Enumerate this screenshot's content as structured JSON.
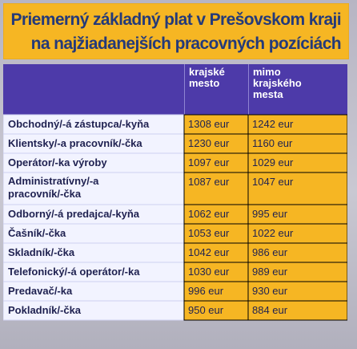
{
  "title": {
    "line1": "Priemerný základný plat v Prešovskom kraji",
    "line2": "na najžiadanejších pracovných pozíciách"
  },
  "colors": {
    "title_bg": "#f6b623",
    "title_text": "#243a7a",
    "header_bg": "#4d3aa9",
    "label_bg": "#f2f3ff",
    "value_bg": "#f6b623",
    "row_separator": "#cfd0f0",
    "body_text": "#1f2150"
  },
  "chart_data": {
    "type": "table",
    "columns": [
      "krajské mesto",
      "mimo krajského mesta"
    ],
    "column_header_lines": [
      [
        "krajské",
        "mesto"
      ],
      [
        "mimo",
        "krajského",
        "mesta"
      ]
    ],
    "rows": [
      {
        "label_lines": [
          "Obchodný/-á zástupca/-kyňa"
        ],
        "values": [
          "1308 eur",
          "1242 eur"
        ]
      },
      {
        "label_lines": [
          "Klientsky/-a pracovník/-čka"
        ],
        "values": [
          "1230 eur",
          "1160 eur"
        ]
      },
      {
        "label_lines": [
          "Operátor/-ka výroby"
        ],
        "values": [
          "1097 eur",
          "1029 eur"
        ]
      },
      {
        "label_lines": [
          "Administratívny/-a",
          "pracovník/-čka"
        ],
        "values": [
          "1087 eur",
          "1047 eur"
        ]
      },
      {
        "label_lines": [
          "Odborný/-á predajca/-kyňa"
        ],
        "values": [
          "1062 eur",
          "995 eur"
        ]
      },
      {
        "label_lines": [
          "Čašník/-čka"
        ],
        "values": [
          "1053 eur",
          "1022 eur"
        ]
      },
      {
        "label_lines": [
          "Skladník/-čka"
        ],
        "values": [
          "1042 eur",
          "986 eur"
        ]
      },
      {
        "label_lines": [
          "Telefonický/-á operátor/-ka"
        ],
        "values": [
          "1030 eur",
          "989 eur"
        ]
      },
      {
        "label_lines": [
          "Predavač/-ka"
        ],
        "values": [
          "996 eur",
          "930 eur"
        ]
      },
      {
        "label_lines": [
          "Pokladník/-čka"
        ],
        "values": [
          "950 eur",
          "884 eur"
        ]
      }
    ]
  }
}
